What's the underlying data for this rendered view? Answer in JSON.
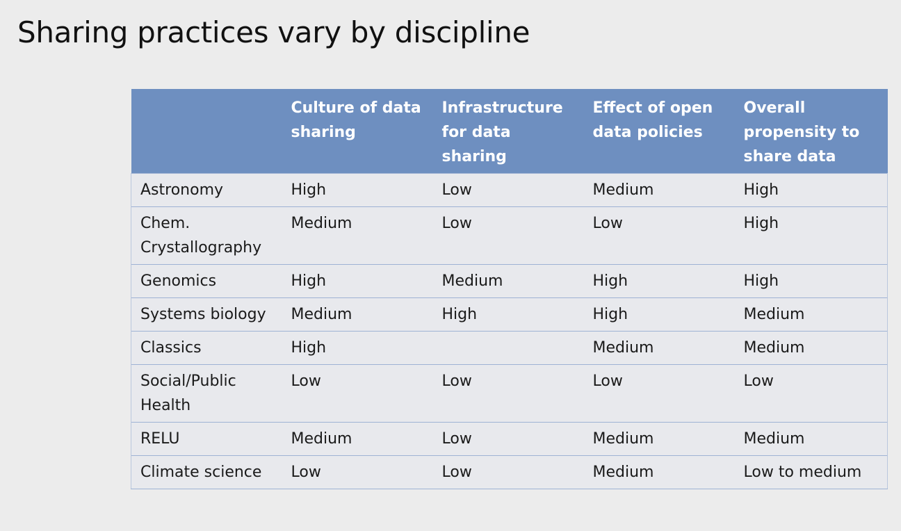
{
  "title": "Sharing practices vary by discipline",
  "table": {
    "headers": [
      "",
      "Culture of data sharing",
      "Infrastructure for data sharing",
      "Effect of open data policies",
      "Overall propensity to share data"
    ],
    "rows": [
      [
        "Astronomy",
        "High",
        "Low",
        "Medium",
        "High"
      ],
      [
        "Chem. Crystallography",
        "Medium",
        "Low",
        "Low",
        "High"
      ],
      [
        "Genomics",
        "High",
        "Medium",
        "High",
        "High"
      ],
      [
        "Systems biology",
        "Medium",
        "High",
        "High",
        "Medium"
      ],
      [
        "Classics",
        "High",
        "",
        "Medium",
        "Medium"
      ],
      [
        "Social/Public Health",
        "Low",
        "Low",
        "Low",
        "Low"
      ],
      [
        "RELU",
        "Medium",
        "Low",
        "Medium",
        "Medium"
      ],
      [
        "Climate science",
        "Low",
        "Low",
        "Medium",
        "Low to medium"
      ]
    ]
  },
  "colors": {
    "header_bg": "#6e8fc0",
    "row_bg": "#e8e9ed",
    "slide_bg": "#ececec"
  }
}
